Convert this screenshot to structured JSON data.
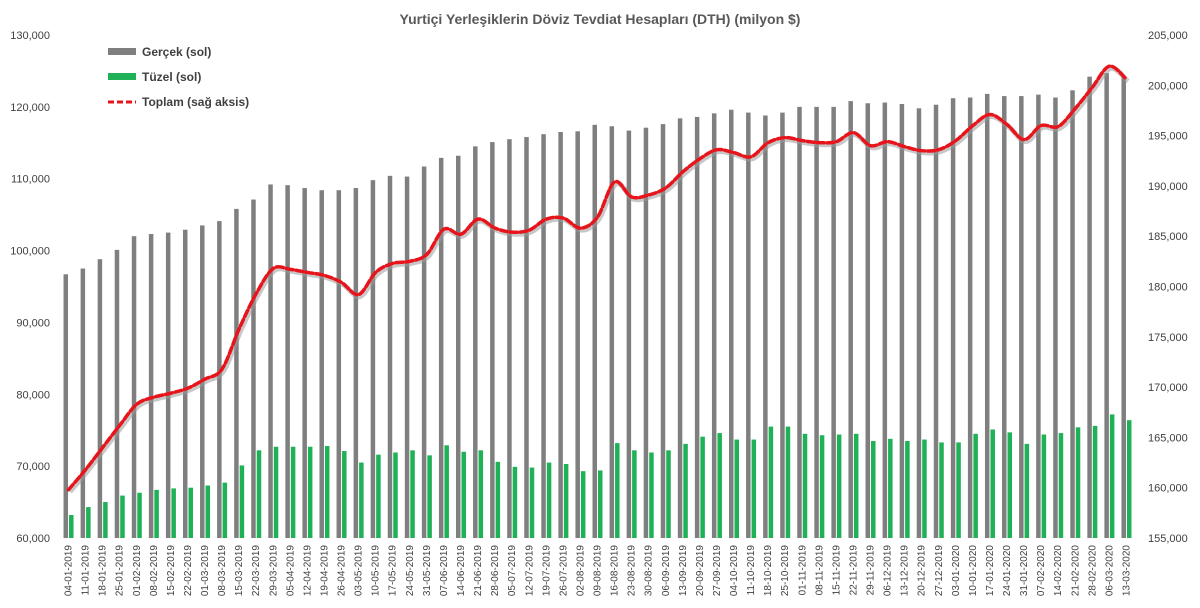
{
  "chart_data": {
    "type": "bar",
    "title": "Yurtiçi Yerleşiklerin Döviz Tevdiat Hesapları (DTH) (milyon $)",
    "ylim_left": [
      60000,
      130000
    ],
    "ylim_right": [
      155000,
      205000
    ],
    "yticks_left": [
      "60,000",
      "70,000",
      "80,000",
      "90,000",
      "100,000",
      "110,000",
      "120,000",
      "130,000"
    ],
    "yticks_right": [
      "155,000",
      "160,000",
      "165,000",
      "170,000",
      "175,000",
      "180,000",
      "185,000",
      "190,000",
      "195,000",
      "200,000",
      "205,000"
    ],
    "grid": false,
    "legend_position": "top-left",
    "categories": [
      "04-01-2019",
      "11-01-2019",
      "18-01-2019",
      "25-01-2019",
      "01-02-2019",
      "08-02-2019",
      "15-02-2019",
      "22-02-2019",
      "01-03-2019",
      "08-03-2019",
      "15-03-2019",
      "22-03-2019",
      "29-03-2019",
      "05-04-2019",
      "12-04-2019",
      "19-04-2019",
      "26-04-2019",
      "03-05-2019",
      "10-05-2019",
      "17-05-2019",
      "24-05-2019",
      "31-05-2019",
      "07-06-2019",
      "14-06-2019",
      "21-06-2019",
      "28-06-2019",
      "05-07-2019",
      "12-07-2019",
      "19-07-2019",
      "26-07-2019",
      "02-08-2019",
      "09-08-2019",
      "16-08-2019",
      "23-08-2019",
      "30-08-2019",
      "06-09-2019",
      "13-09-2019",
      "20-09-2019",
      "27-09-2019",
      "04-10-2019",
      "11-10-2019",
      "18-10-2019",
      "25-10-2019",
      "01-11-2019",
      "08-11-2019",
      "15-11-2019",
      "22-11-2019",
      "29-11-2019",
      "06-12-2019",
      "13-12-2019",
      "20-12-2019",
      "27-12-2019",
      "03-01-2020",
      "10-01-2020",
      "17-01-2020",
      "24-01-2020",
      "31-01-2020",
      "07-02-2020",
      "14-02-2020",
      "21-02-2020",
      "28-02-2020",
      "06-03-2020",
      "13-03-2020"
    ],
    "series": [
      {
        "name": "Gerçek (sol)",
        "axis": "left",
        "kind": "bar",
        "color": "#7f7f7f",
        "values": [
          96700,
          97500,
          98800,
          100100,
          102000,
          102300,
          102500,
          102900,
          103500,
          104100,
          105800,
          107100,
          109200,
          109100,
          108700,
          108400,
          108400,
          108700,
          109800,
          110400,
          110300,
          111700,
          112900,
          113200,
          114500,
          115100,
          115500,
          115800,
          116200,
          116500,
          116600,
          117500,
          117300,
          116700,
          117100,
          117600,
          118400,
          118600,
          119100,
          119600,
          119200,
          118800,
          119200,
          120000,
          120000,
          120000,
          120800,
          120500,
          120600,
          120400,
          119800,
          120300,
          121200,
          121300,
          121800,
          121500,
          121500,
          121700,
          121300,
          122300,
          124200,
          124700,
          124200
        ]
      },
      {
        "name": "Tüzel (sol)",
        "axis": "left",
        "kind": "bar",
        "color": "#1eb156",
        "values": [
          63200,
          64300,
          65000,
          65900,
          66300,
          66700,
          66900,
          67000,
          67300,
          67700,
          70100,
          72200,
          72700,
          72700,
          72700,
          72800,
          72100,
          70500,
          71600,
          71900,
          72200,
          71500,
          72900,
          72000,
          72200,
          70600,
          69900,
          69800,
          70500,
          70300,
          69300,
          69400,
          73200,
          72200,
          71900,
          72200,
          73100,
          74100,
          74600,
          73700,
          73700,
          75500,
          75500,
          74500,
          74300,
          74400,
          74500,
          73500,
          73800,
          73500,
          73700,
          73300,
          73300,
          74500,
          75100,
          74700,
          73100,
          74400,
          74600,
          75400,
          75600,
          77200,
          76400
        ]
      },
      {
        "name": "Toplam (sağ aksis)",
        "axis": "right",
        "kind": "line",
        "color": "#e8141b",
        "values": [
          159800,
          161800,
          164000,
          166200,
          168300,
          169000,
          169400,
          169900,
          170800,
          171800,
          175800,
          179300,
          181800,
          181700,
          181400,
          181100,
          180400,
          179200,
          181400,
          182300,
          182500,
          183200,
          185700,
          185200,
          186700,
          185800,
          185400,
          185600,
          186700,
          186800,
          185800,
          186900,
          190400,
          188900,
          189100,
          189800,
          191400,
          192700,
          193600,
          193300,
          192900,
          194300,
          194800,
          194500,
          194300,
          194400,
          195300,
          194000,
          194400,
          193900,
          193500,
          193600,
          194500,
          196000,
          197100,
          196100,
          194600,
          196000,
          195900,
          197700,
          199800,
          201900,
          200600
        ]
      }
    ]
  }
}
